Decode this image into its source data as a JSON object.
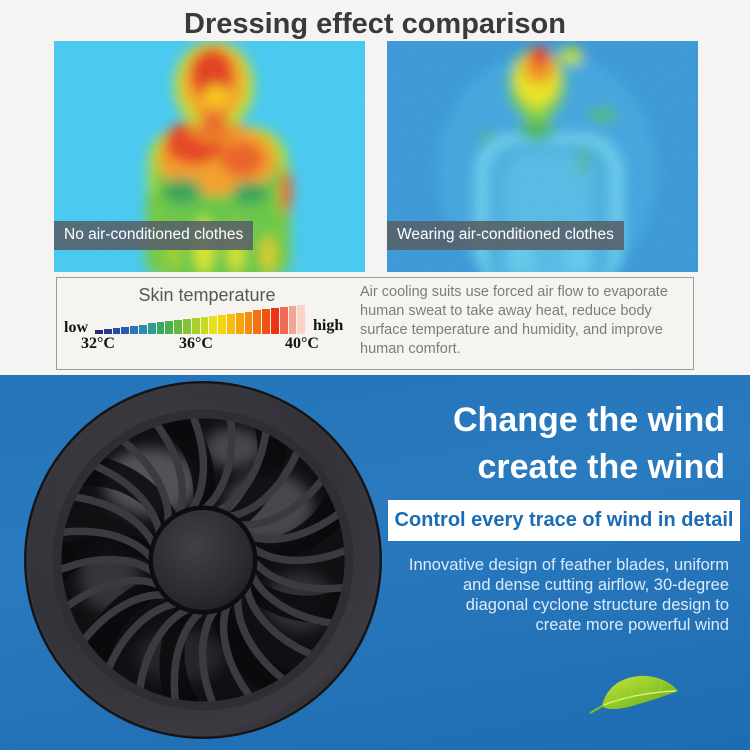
{
  "header": {
    "title": "Dressing effect comparison"
  },
  "comparison": {
    "left_label": "No air-conditioned clothes",
    "right_label": "Wearing air-conditioned clothes"
  },
  "temperature_panel": {
    "scale_title": "Skin temperature",
    "low_label": "low",
    "high_label": "high",
    "ticks": [
      "32°C",
      "36°C",
      "40°C"
    ],
    "gradient_colors": [
      "#242e6e",
      "#263d85",
      "#284b9c",
      "#2a5cae",
      "#2e74b8",
      "#2f8cae",
      "#319c8e",
      "#36a967",
      "#46b14d",
      "#63ba3e",
      "#85c433",
      "#a8cf2a",
      "#c9da22",
      "#e6df1b",
      "#f5d414",
      "#f7bd0f",
      "#f6a50d",
      "#f48c0e",
      "#f27211",
      "#ef5413",
      "#ec3313",
      "#ef6b58",
      "#f5a494",
      "#fad3c9"
    ],
    "description_lines": [
      "Air cooling suits use forced air flow to evaporate",
      "human sweat to take away heat, reduce body",
      "surface temperature and humidity, and improve",
      "human comfort."
    ]
  },
  "promo": {
    "heading_line1": "Change the wind",
    "heading_line2": "create the wind",
    "banner": "Control every trace of wind in detail",
    "body_lines": [
      "Innovative design of feather blades, uniform",
      "and dense cutting airflow, 30-degree",
      "diagonal cyclone structure design to",
      "create more powerful wind"
    ]
  },
  "colors": {
    "section_background": "#f5f4f2",
    "blue_background": "#2372b7",
    "accent_blue": "#1a6cb5",
    "label_background": "#566069",
    "leaf_green": "#8cc727"
  }
}
